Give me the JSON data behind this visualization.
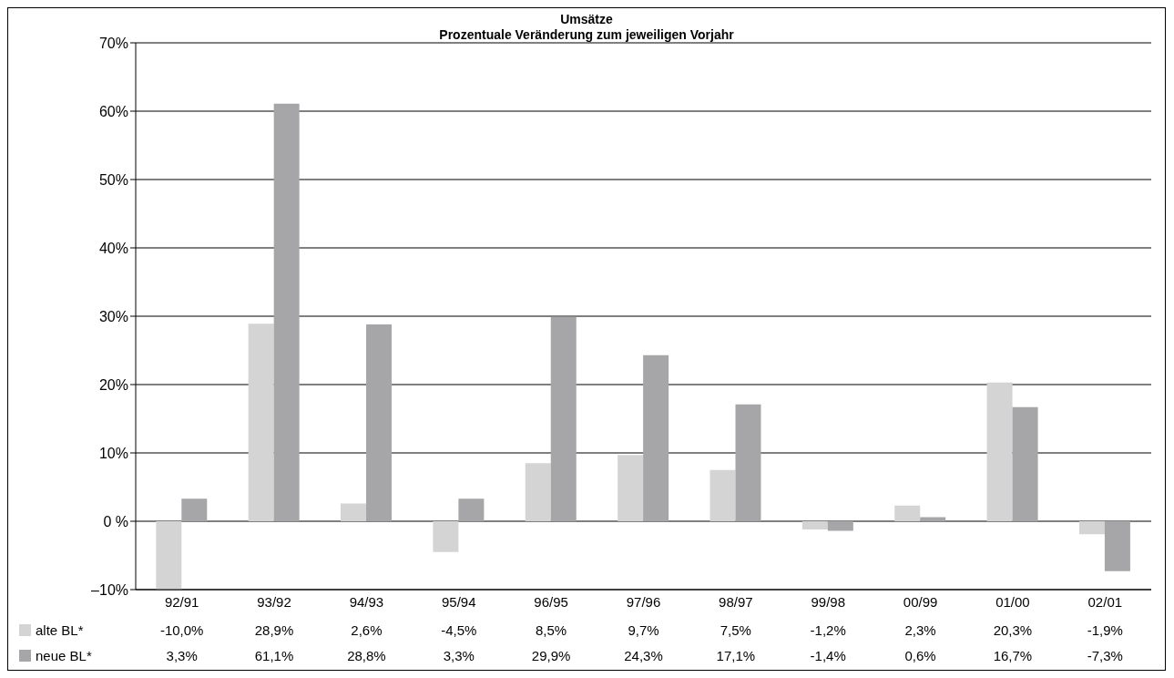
{
  "chart_data": {
    "type": "bar",
    "title": "Umsätze",
    "subtitle": "Prozentuale Veränderung zum jeweiligen Vorjahr",
    "categories": [
      "92/91",
      "93/92",
      "94/93",
      "95/94",
      "96/95",
      "97/96",
      "98/97",
      "99/98",
      "00/99",
      "01/00",
      "02/01"
    ],
    "series": [
      {
        "name": "alte BL*",
        "color": "#d4d4d4",
        "values": [
          -10.0,
          28.9,
          2.6,
          -4.5,
          8.5,
          9.7,
          7.5,
          -1.2,
          2.3,
          20.3,
          -1.9
        ],
        "value_labels": [
          "-10,0%",
          "28,9%",
          "2,6%",
          "-4,5%",
          "8,5%",
          "9,7%",
          "7,5%",
          "-1,2%",
          "2,3%",
          "20,3%",
          "-1,9%"
        ]
      },
      {
        "name": "neue BL*",
        "color": "#a6a6a9",
        "values": [
          3.3,
          61.1,
          28.8,
          3.3,
          29.9,
          24.3,
          17.1,
          -1.4,
          0.6,
          16.7,
          -7.3
        ],
        "value_labels": [
          "3,3%",
          "61,1%",
          "28,8%",
          "3,3%",
          "29,9%",
          "24,3%",
          "17,1%",
          "-1,4%",
          "0,6%",
          "16,7%",
          "-7,3%"
        ]
      }
    ],
    "ylim": [
      -10,
      70
    ],
    "yticks": [
      {
        "value": -10,
        "label": "–10%"
      },
      {
        "value": 0,
        "label": "0 %"
      },
      {
        "value": 10,
        "label": "10%"
      },
      {
        "value": 20,
        "label": "20%"
      },
      {
        "value": 30,
        "label": "30%"
      },
      {
        "value": 40,
        "label": "40%"
      },
      {
        "value": 50,
        "label": "50%"
      },
      {
        "value": 60,
        "label": "60%"
      },
      {
        "value": 70,
        "label": "70%"
      }
    ],
    "grid": "y",
    "legend": "bottom"
  }
}
